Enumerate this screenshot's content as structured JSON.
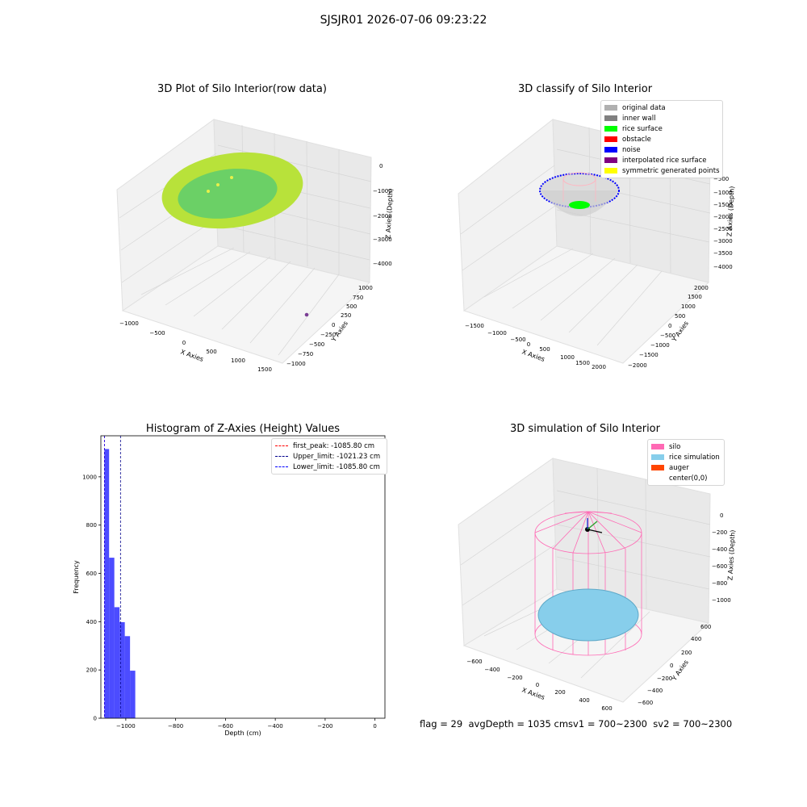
{
  "figure": {
    "suptitle": "SJSJR01 2026-07-06 09:23:22",
    "footer": "flag = 29  avgDepth = 1035 cmsv1 = 700~2300  sv2 = 700~2300"
  },
  "colors": {
    "grid": "#d9d9d9",
    "pane_left": "#f2f2f2",
    "pane_right": "#e9e9e9",
    "pane_floor": "#f5f5f5",
    "hist_bar": "#0000ff",
    "silo_wire": "#ff69b4",
    "rice_sim": "#87ceeb",
    "auger": "#ff4500"
  },
  "panels": {
    "raw": {
      "title": "3D Plot of Silo Interior(row data)",
      "xlabel": "X Axies",
      "ylabel": "Y Axies",
      "zlabel": "Z Axies (Depth)",
      "xticks": [
        "−1000",
        "−500",
        "0",
        "500",
        "1000",
        "1500"
      ],
      "yticks": [
        "−1000",
        "−750",
        "−500",
        "−250",
        "0",
        "250",
        "500",
        "750",
        "1000"
      ],
      "zticks": [
        "0",
        "−1000",
        "−2000",
        "−3000",
        "−4000"
      ]
    },
    "classify": {
      "title": "3D classify of Silo Interior",
      "xlabel": "X Axies",
      "ylabel": "Y Axies",
      "zlabel": "Z Axies (Depth)",
      "xticks": [
        "−1500",
        "−1000",
        "−500",
        "0",
        "500",
        "1000",
        "1500",
        "2000"
      ],
      "yticks": [
        "−2000",
        "−1500",
        "−1000",
        "−500",
        "0",
        "500",
        "1000",
        "1500",
        "2000"
      ],
      "zticks": [
        "−500",
        "−1000",
        "−1500",
        "−2000",
        "−2500",
        "−3000",
        "−3500",
        "−4000"
      ],
      "legend": [
        {
          "label": "original data",
          "color": "#b0b0b0"
        },
        {
          "label": "inner wall",
          "color": "#808080"
        },
        {
          "label": "rice surface",
          "color": "#00ff00"
        },
        {
          "label": "obstacle",
          "color": "#ff0000"
        },
        {
          "label": "noise",
          "color": "#0000ff"
        },
        {
          "label": "interpolated rice surface",
          "color": "#800080"
        },
        {
          "label": "symmetric generated points",
          "color": "#ffff00"
        }
      ]
    },
    "hist": {
      "title": "Histogram of Z-Axies (Height) Values",
      "xlabel": "Depth (cm)",
      "ylabel": "Frequency",
      "legend": [
        {
          "label": "first_peak: -1085.80 cm",
          "color": "#ff0000"
        },
        {
          "label": "Upper_limit: -1021.23 cm",
          "color": "#00008b"
        },
        {
          "label": "Lower_limit: -1085.80 cm",
          "color": "#0000ff"
        }
      ]
    },
    "sim": {
      "title": "3D simulation of Silo Interior",
      "xlabel": "X Axies",
      "ylabel": "Y Axies",
      "zlabel": "Z Axies (Depth)",
      "xticks": [
        "−600",
        "−400",
        "−200",
        "0",
        "200",
        "400",
        "600"
      ],
      "yticks": [
        "−600",
        "−400",
        "−200",
        "0",
        "200",
        "400",
        "600"
      ],
      "zticks": [
        "0",
        "−200",
        "−400",
        "−600",
        "−800",
        "−1000"
      ],
      "legend": [
        {
          "label": "silo",
          "color": "#ff69b4"
        },
        {
          "label": "rice simulation",
          "color": "#87ceeb"
        },
        {
          "label": "auger",
          "color": "#ff4500"
        },
        {
          "label": "center(0,0)",
          "color": ""
        }
      ]
    }
  },
  "chart_data": {
    "type": "bar",
    "title": "Histogram of Z-Axies (Height) Values",
    "xlabel": "Depth (cm)",
    "ylabel": "Frequency",
    "xlim": [
      -1100,
      40
    ],
    "ylim": [
      0,
      1170
    ],
    "xticks": [
      -1000,
      -800,
      -600,
      -400,
      -200,
      0
    ],
    "yticks": [
      0,
      200,
      400,
      600,
      800,
      1000
    ],
    "bins": [
      {
        "x0": -1086,
        "x1": -1067,
        "count": 1115
      },
      {
        "x0": -1067,
        "x1": -1046,
        "count": 665
      },
      {
        "x0": -1046,
        "x1": -1025,
        "count": 460
      },
      {
        "x0": -1025,
        "x1": -1004,
        "count": 398
      },
      {
        "x0": -1004,
        "x1": -983,
        "count": 340
      },
      {
        "x0": -983,
        "x1": -962,
        "count": 197
      }
    ],
    "vlines": [
      {
        "label": "first_peak: -1085.80 cm",
        "x": -1085.8,
        "color": "#ff0000"
      },
      {
        "label": "Upper_limit: -1021.23 cm",
        "x": -1021.23,
        "color": "#00008b"
      },
      {
        "label": "Lower_limit: -1085.80 cm",
        "x": -1085.8,
        "color": "#0000ff"
      }
    ]
  }
}
